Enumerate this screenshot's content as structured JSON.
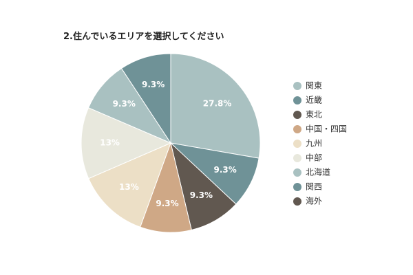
{
  "chart_data": {
    "type": "pie",
    "title": "2.住んでいるエリアを選択してください",
    "legend_position": "right",
    "slices": [
      {
        "label": "関東",
        "value": 27.8,
        "display": "27.8%",
        "color": "#a9c1c1"
      },
      {
        "label": "近畿",
        "value": 9.3,
        "display": "9.3%",
        "color": "#6f9297"
      },
      {
        "label": "東北",
        "value": 9.3,
        "display": "9.3%",
        "color": "#615850"
      },
      {
        "label": "中国・四国",
        "value": 9.3,
        "display": "9.3%",
        "color": "#cfa886"
      },
      {
        "label": "九州",
        "value": 13,
        "display": "13%",
        "color": "#ecdfc6"
      },
      {
        "label": "中部",
        "value": 13,
        "display": "13%",
        "color": "#e8e8dd"
      },
      {
        "label": "北海道",
        "value": 9.3,
        "display": "9.3%",
        "color": "#a9c1c1"
      },
      {
        "label": "関西",
        "value": 9.3,
        "display": "9.3%",
        "color": "#6f9297"
      },
      {
        "label": "海外",
        "value": 0,
        "display": "",
        "color": "#615850"
      }
    ]
  }
}
